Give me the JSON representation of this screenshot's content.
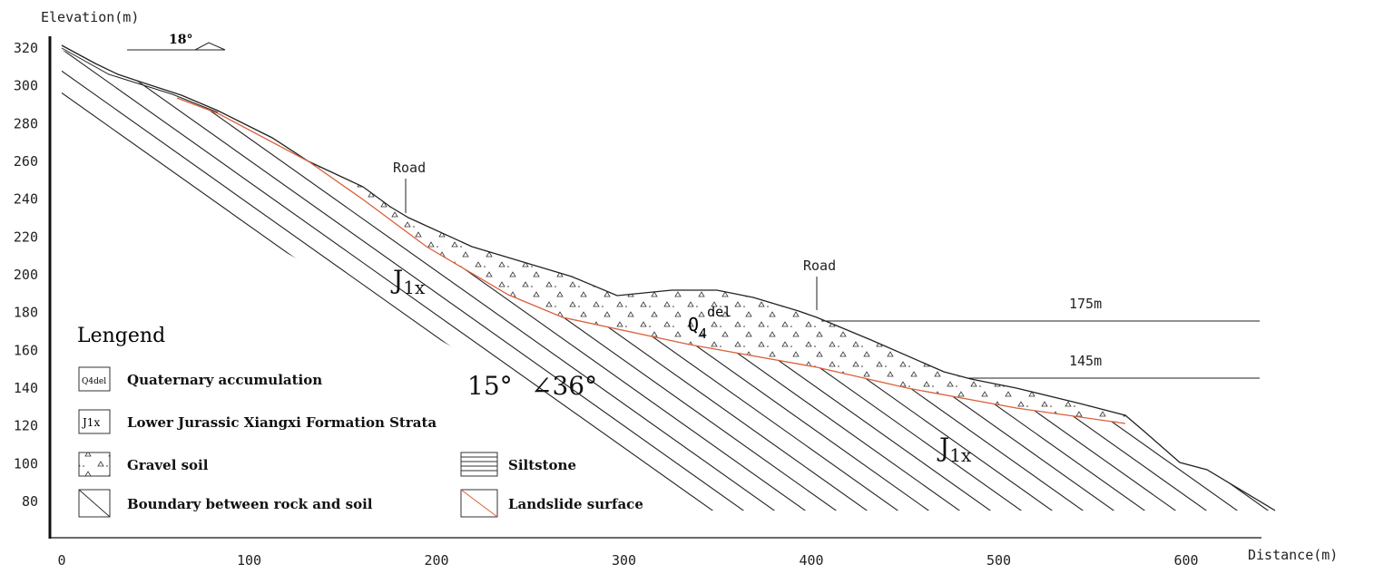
{
  "axes": {
    "y_label": "Elevation(m)",
    "x_label": "Distance(m)",
    "yticks": [
      320,
      300,
      280,
      260,
      240,
      220,
      200,
      180,
      160,
      140,
      120,
      100,
      80
    ],
    "xticks": [
      0,
      100,
      200,
      300,
      400,
      500,
      600
    ]
  },
  "annotations": {
    "dip": "18°",
    "road_upper": "Road",
    "road_lower": "Road",
    "level_upper": "175m",
    "level_lower": "145m",
    "rock_left": {
      "main": "J",
      "sub": "1x"
    },
    "rock_right": {
      "main": "J",
      "sub": "1x"
    },
    "deposit": {
      "main": "Q",
      "sub": "4",
      "sup": "del"
    },
    "angle_slope": "15°",
    "angle_dip": "∠36°"
  },
  "legend": {
    "title": "Lengend",
    "items": [
      {
        "symbol": "Q4del",
        "label": "Quaternary accumulation"
      },
      {
        "symbol": "J1x",
        "label": "Lower Jurassic Xiangxi Formation Strata"
      },
      {
        "label": "Gravel soil"
      },
      {
        "label": "Siltstone"
      },
      {
        "label": "Boundary between rock and soil"
      },
      {
        "label": "Landslide surface"
      }
    ]
  }
}
